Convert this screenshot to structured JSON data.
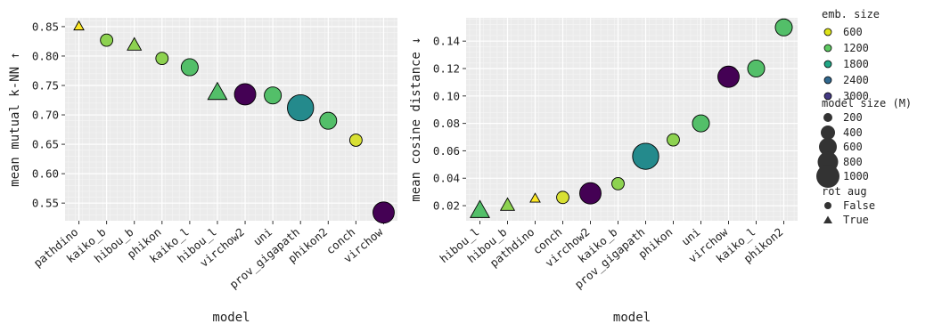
{
  "chart_data": [
    {
      "type": "scatter",
      "title": "",
      "xlabel": "model",
      "ylabel": "mean mutual k-NN ↑",
      "ylim": [
        0.52,
        0.865
      ],
      "yticks": [
        "0.55",
        "0.60",
        "0.65",
        "0.70",
        "0.75",
        "0.80",
        "0.85"
      ],
      "grid": true,
      "categories": [
        "pathdino",
        "kaiko_b",
        "hibou_b",
        "phikon",
        "kaiko_l",
        "hibou_l",
        "virchow2",
        "uni",
        "prov_gigapath",
        "phikon2",
        "conch",
        "virchow"
      ],
      "points": [
        {
          "model": "pathdino",
          "y": 0.85,
          "emb_size": 384,
          "model_size": 9,
          "rot_aug": true
        },
        {
          "model": "kaiko_b",
          "y": 0.827,
          "emb_size": 768,
          "model_size": 86,
          "rot_aug": false
        },
        {
          "model": "hibou_b",
          "y": 0.818,
          "emb_size": 768,
          "model_size": 86,
          "rot_aug": true
        },
        {
          "model": "phikon",
          "y": 0.796,
          "emb_size": 768,
          "model_size": 86,
          "rot_aug": false
        },
        {
          "model": "kaiko_l",
          "y": 0.781,
          "emb_size": 1024,
          "model_size": 304,
          "rot_aug": false
        },
        {
          "model": "hibou_l",
          "y": 0.737,
          "emb_size": 1024,
          "model_size": 304,
          "rot_aug": true
        },
        {
          "model": "virchow2",
          "y": 0.735,
          "emb_size": 2560,
          "model_size": 632,
          "rot_aug": false
        },
        {
          "model": "uni",
          "y": 0.733,
          "emb_size": 1024,
          "model_size": 304,
          "rot_aug": false
        },
        {
          "model": "prov_gigapath",
          "y": 0.712,
          "emb_size": 1536,
          "model_size": 1135,
          "rot_aug": false
        },
        {
          "model": "phikon2",
          "y": 0.69,
          "emb_size": 1024,
          "model_size": 304,
          "rot_aug": false
        },
        {
          "model": "conch",
          "y": 0.657,
          "emb_size": 512,
          "model_size": 86,
          "rot_aug": false
        },
        {
          "model": "virchow",
          "y": 0.534,
          "emb_size": 2560,
          "model_size": 632,
          "rot_aug": false
        }
      ]
    },
    {
      "type": "scatter",
      "title": "",
      "xlabel": "model",
      "ylabel": "mean cosine distance ↓",
      "ylim": [
        0.009,
        0.157
      ],
      "yticks": [
        "0.02",
        "0.04",
        "0.06",
        "0.08",
        "0.10",
        "0.12",
        "0.14"
      ],
      "grid": true,
      "categories": [
        "hibou_l",
        "hibou_b",
        "pathdino",
        "conch",
        "virchow2",
        "kaiko_b",
        "prov_gigapath",
        "phikon",
        "uni",
        "virchow",
        "kaiko_l",
        "phikon2"
      ],
      "points": [
        {
          "model": "hibou_l",
          "y": 0.016,
          "emb_size": 1024,
          "model_size": 304,
          "rot_aug": true
        },
        {
          "model": "hibou_b",
          "y": 0.02,
          "emb_size": 768,
          "model_size": 86,
          "rot_aug": true
        },
        {
          "model": "pathdino",
          "y": 0.025,
          "emb_size": 384,
          "model_size": 9,
          "rot_aug": true
        },
        {
          "model": "conch",
          "y": 0.026,
          "emb_size": 512,
          "model_size": 86,
          "rot_aug": false
        },
        {
          "model": "virchow2",
          "y": 0.029,
          "emb_size": 2560,
          "model_size": 632,
          "rot_aug": false
        },
        {
          "model": "kaiko_b",
          "y": 0.036,
          "emb_size": 768,
          "model_size": 86,
          "rot_aug": false
        },
        {
          "model": "prov_gigapath",
          "y": 0.056,
          "emb_size": 1536,
          "model_size": 1135,
          "rot_aug": false
        },
        {
          "model": "phikon",
          "y": 0.068,
          "emb_size": 768,
          "model_size": 86,
          "rot_aug": false
        },
        {
          "model": "uni",
          "y": 0.08,
          "emb_size": 1024,
          "model_size": 304,
          "rot_aug": false
        },
        {
          "model": "virchow",
          "y": 0.114,
          "emb_size": 2560,
          "model_size": 632,
          "rot_aug": false
        },
        {
          "model": "kaiko_l",
          "y": 0.12,
          "emb_size": 1024,
          "model_size": 304,
          "rot_aug": false
        },
        {
          "model": "phikon2",
          "y": 0.15,
          "emb_size": 1024,
          "model_size": 304,
          "rot_aug": false
        }
      ]
    }
  ],
  "legend": {
    "placement": "right",
    "emb_size_title": "emb. size",
    "emb_size_items": [
      {
        "label": "600",
        "color": "#dde318"
      },
      {
        "label": "1200",
        "color": "#5ec962"
      },
      {
        "label": "1800",
        "color": "#21a685"
      },
      {
        "label": "2400",
        "color": "#31688e"
      },
      {
        "label": "3000",
        "color": "#443983"
      }
    ],
    "model_size_title": "model size (M)",
    "model_size_items": [
      {
        "label": "200",
        "value": 200
      },
      {
        "label": "400",
        "value": 400
      },
      {
        "label": "600",
        "value": 600
      },
      {
        "label": "800",
        "value": 800
      },
      {
        "label": "1000",
        "value": 1000
      }
    ],
    "rot_aug_title": "rot aug",
    "rot_aug_items": [
      {
        "label": "False",
        "shape": "circle"
      },
      {
        "label": "True",
        "shape": "triangle"
      }
    ]
  },
  "colors": {
    "panel_background": "#ebebeb",
    "grid_major": "#ffffff",
    "marker_stroke": "#000000",
    "legend_marker": "#333333"
  }
}
